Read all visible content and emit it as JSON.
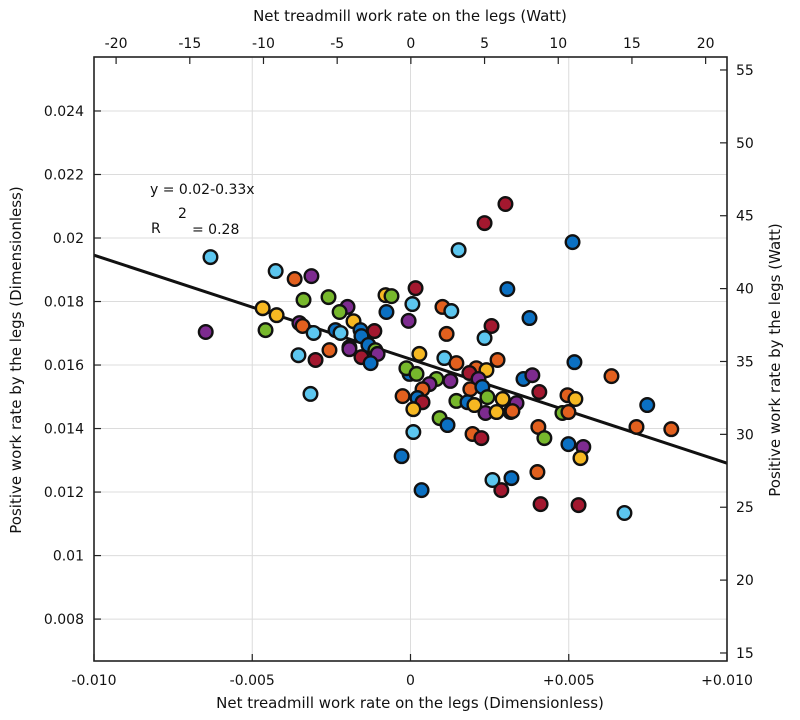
{
  "chart_data": {
    "type": "scatter",
    "title": "",
    "xlabel": "Net treadmill work rate on the legs (Dimensionless)",
    "ylabel": "Positive work rate by the legs (Dimensionless)",
    "x2label": "Net treadmill work rate on the legs (Watt)",
    "y2label": "Positive work rate by the legs (Watt)",
    "xlim": [
      -0.01,
      0.01
    ],
    "ylim": [
      0.00668,
      0.0257
    ],
    "x2lim": [
      -21.5,
      21.45
    ],
    "y2lim": [
      14.45,
      55.89
    ],
    "grid": true,
    "xticks": [
      {
        "value": -0.01,
        "label": "-0.010"
      },
      {
        "value": -0.005,
        "label": "-0.005"
      },
      {
        "value": 0,
        "label": "0"
      },
      {
        "value": 0.005,
        "label": "+0.005"
      },
      {
        "value": 0.01,
        "label": "+0.010"
      }
    ],
    "yticks": [
      {
        "value": 0.008,
        "label": "0.008"
      },
      {
        "value": 0.01,
        "label": "0.01"
      },
      {
        "value": 0.012,
        "label": "0.012"
      },
      {
        "value": 0.014,
        "label": "0.014"
      },
      {
        "value": 0.016,
        "label": "0.016"
      },
      {
        "value": 0.018,
        "label": "0.018"
      },
      {
        "value": 0.02,
        "label": "0.02"
      },
      {
        "value": 0.022,
        "label": "0.022"
      },
      {
        "value": 0.024,
        "label": "0.024"
      }
    ],
    "x2ticks": [
      {
        "value": -20,
        "label": "-20"
      },
      {
        "value": -15,
        "label": "-15"
      },
      {
        "value": -10,
        "label": "-10"
      },
      {
        "value": -5,
        "label": "-5"
      },
      {
        "value": 0,
        "label": "0"
      },
      {
        "value": 5,
        "label": "5"
      },
      {
        "value": 10,
        "label": "10"
      },
      {
        "value": 15,
        "label": "15"
      },
      {
        "value": 20,
        "label": "20"
      }
    ],
    "y2ticks": [
      {
        "value": 15,
        "label": "15"
      },
      {
        "value": 20,
        "label": "20"
      },
      {
        "value": 25,
        "label": "25"
      },
      {
        "value": 30,
        "label": "30"
      },
      {
        "value": 35,
        "label": "35"
      },
      {
        "value": 40,
        "label": "40"
      },
      {
        "value": 45,
        "label": "45"
      },
      {
        "value": 50,
        "label": "50"
      },
      {
        "value": 55,
        "label": "55"
      }
    ],
    "annotations": {
      "equation": "y = 0.02-0.33x",
      "r_label": "R",
      "r_superscript": "2",
      "r_value": "= 0.28"
    },
    "fit_line": {
      "x": [
        -0.01,
        0.01
      ],
      "y": [
        0.01946,
        0.01291
      ]
    },
    "colors": {
      "lightblue": "#5cc6ef",
      "purple": "#7d2b8f",
      "orange": "#e2601e",
      "green": "#77b82c",
      "yellow": "#f6b822",
      "blue": "#0b70c2",
      "darkred": "#a3182f"
    },
    "points": [
      {
        "c": "lightblue",
        "x": -0.00632,
        "y": 0.0194
      },
      {
        "c": "purple",
        "x": -0.00647,
        "y": 0.01704
      },
      {
        "c": "lightblue",
        "x": -0.00426,
        "y": 0.01896
      },
      {
        "c": "orange",
        "x": -0.00366,
        "y": 0.01871
      },
      {
        "c": "purple",
        "x": -0.00313,
        "y": 0.0188
      },
      {
        "c": "green",
        "x": -0.00338,
        "y": 0.01805
      },
      {
        "c": "green",
        "x": -0.00259,
        "y": 0.01814
      },
      {
        "c": "yellow",
        "x": -0.00467,
        "y": 0.01779
      },
      {
        "c": "yellow",
        "x": -0.00423,
        "y": 0.01757
      },
      {
        "c": "green",
        "x": -0.00458,
        "y": 0.0171
      },
      {
        "c": "purple",
        "x": -0.00351,
        "y": 0.01732
      },
      {
        "c": "orange",
        "x": -0.00341,
        "y": 0.01723
      },
      {
        "c": "lightblue",
        "x": -0.00306,
        "y": 0.01701
      },
      {
        "c": "lightblue",
        "x": -0.00354,
        "y": 0.01631
      },
      {
        "c": "darkred",
        "x": -0.003,
        "y": 0.01616
      },
      {
        "c": "orange",
        "x": -0.00256,
        "y": 0.01647
      },
      {
        "c": "purple",
        "x": -0.00199,
        "y": 0.01783
      },
      {
        "c": "green",
        "x": -0.00224,
        "y": 0.01767
      },
      {
        "c": "yellow",
        "x": -0.0018,
        "y": 0.01738
      },
      {
        "c": "blue",
        "x": -0.00237,
        "y": 0.0171
      },
      {
        "c": "lightblue",
        "x": -0.00221,
        "y": 0.01701
      },
      {
        "c": "blue",
        "x": -0.00158,
        "y": 0.0171
      },
      {
        "c": "blue",
        "x": -0.00155,
        "y": 0.01691
      },
      {
        "c": "darkred",
        "x": -0.00114,
        "y": 0.01707
      },
      {
        "c": "yellow",
        "x": -0.00193,
        "y": 0.01656
      },
      {
        "c": "purple",
        "x": -0.00193,
        "y": 0.0165
      },
      {
        "c": "blue",
        "x": -0.00133,
        "y": 0.01663
      },
      {
        "c": "green",
        "x": -0.00111,
        "y": 0.01647
      },
      {
        "c": "purple",
        "x": -0.00104,
        "y": 0.01635
      },
      {
        "c": "darkred",
        "x": -0.00155,
        "y": 0.01625
      },
      {
        "c": "blue",
        "x": -0.00126,
        "y": 0.01606
      },
      {
        "c": "yellow",
        "x": -0.00079,
        "y": 0.0182
      },
      {
        "c": "green",
        "x": -0.0006,
        "y": 0.01817
      },
      {
        "c": "blue",
        "x": -0.00076,
        "y": 0.01767
      },
      {
        "c": "darkred",
        "x": 0.00016,
        "y": 0.01842
      },
      {
        "c": "lightblue",
        "x": 6e-05,
        "y": 0.01792
      },
      {
        "c": "purple",
        "x": -6e-05,
        "y": 0.01739
      },
      {
        "c": "blue",
        "x": -3e-05,
        "y": 0.01572
      },
      {
        "c": "green",
        "x": -0.00013,
        "y": 0.0159
      },
      {
        "c": "green",
        "x": 0.00019,
        "y": 0.01572
      },
      {
        "c": "yellow",
        "x": 0.00028,
        "y": 0.01635
      },
      {
        "c": "darkred",
        "x": 0.003,
        "y": 0.02107
      },
      {
        "c": "darkred",
        "x": 0.00234,
        "y": 0.02047
      },
      {
        "c": "lightblue",
        "x": 0.00152,
        "y": 0.01962
      },
      {
        "c": "blue",
        "x": 0.00512,
        "y": 0.01987
      },
      {
        "c": "blue",
        "x": 0.00306,
        "y": 0.01839
      },
      {
        "c": "orange",
        "x": 0.00101,
        "y": 0.01783
      },
      {
        "c": "lightblue",
        "x": 0.00129,
        "y": 0.0177
      },
      {
        "c": "blue",
        "x": 0.00376,
        "y": 0.01748
      },
      {
        "c": "darkred",
        "x": 0.00256,
        "y": 0.01723
      },
      {
        "c": "lightblue",
        "x": 0.00234,
        "y": 0.01685
      },
      {
        "c": "orange",
        "x": 0.00114,
        "y": 0.01698
      },
      {
        "c": "lightblue",
        "x": 0.00107,
        "y": 0.01622
      },
      {
        "c": "orange",
        "x": 0.00145,
        "y": 0.01606
      },
      {
        "c": "orange",
        "x": 0.00275,
        "y": 0.01616
      },
      {
        "c": "blue",
        "x": 0.00518,
        "y": 0.01609
      },
      {
        "c": "orange",
        "x": 0.00635,
        "y": 0.01565
      },
      {
        "c": "orange",
        "x": 0.00208,
        "y": 0.0159
      },
      {
        "c": "yellow",
        "x": 0.0024,
        "y": 0.01584
      },
      {
        "c": "darkred",
        "x": 0.00186,
        "y": 0.01575
      },
      {
        "c": "purple",
        "x": 0.00215,
        "y": 0.01556
      },
      {
        "c": "blue",
        "x": 0.00357,
        "y": 0.01556
      },
      {
        "c": "purple",
        "x": 0.00385,
        "y": 0.01568
      },
      {
        "c": "purple",
        "x": 0.00126,
        "y": 0.0155
      },
      {
        "c": "green",
        "x": 0.00082,
        "y": 0.01556
      },
      {
        "c": "purple",
        "x": 0.0006,
        "y": 0.0154
      },
      {
        "c": "orange",
        "x": 0.00038,
        "y": 0.01524
      },
      {
        "c": "orange",
        "x": 0.00189,
        "y": 0.01524
      },
      {
        "c": "blue",
        "x": 0.00227,
        "y": 0.01531
      },
      {
        "c": "darkred",
        "x": 0.00407,
        "y": 0.01515
      },
      {
        "c": "orange",
        "x": 0.00496,
        "y": 0.01505
      },
      {
        "c": "yellow",
        "x": 0.00521,
        "y": 0.01493
      },
      {
        "c": "orange",
        "x": -0.00025,
        "y": 0.01502
      },
      {
        "c": "blue",
        "x": 0.00022,
        "y": 0.01496
      },
      {
        "c": "darkred",
        "x": 0.00038,
        "y": 0.01483
      },
      {
        "c": "yellow",
        "x": 9e-05,
        "y": 0.01461
      },
      {
        "c": "green",
        "x": 0.00092,
        "y": 0.01433
      },
      {
        "c": "blue",
        "x": 0.00117,
        "y": 0.01411
      },
      {
        "c": "lightblue",
        "x": 9e-05,
        "y": 0.01389
      },
      {
        "c": "blue",
        "x": -0.00028,
        "y": 0.01313
      },
      {
        "c": "blue",
        "x": 0.00035,
        "y": 0.01206
      },
      {
        "c": "green",
        "x": 0.00145,
        "y": 0.01487
      },
      {
        "c": "blue",
        "x": 0.0018,
        "y": 0.01483
      },
      {
        "c": "yellow",
        "x": 0.00202,
        "y": 0.01474
      },
      {
        "c": "green",
        "x": 0.00243,
        "y": 0.01499
      },
      {
        "c": "yellow",
        "x": 0.00291,
        "y": 0.01493
      },
      {
        "c": "purple",
        "x": 0.00335,
        "y": 0.0148
      },
      {
        "c": "purple",
        "x": 0.00237,
        "y": 0.01449
      },
      {
        "c": "yellow",
        "x": 0.00272,
        "y": 0.01452
      },
      {
        "c": "darkred",
        "x": 0.00316,
        "y": 0.01452
      },
      {
        "c": "orange",
        "x": 0.00322,
        "y": 0.01455
      },
      {
        "c": "orange",
        "x": 0.00196,
        "y": 0.01383
      },
      {
        "c": "darkred",
        "x": 0.00224,
        "y": 0.0137
      },
      {
        "c": "green",
        "x": 0.0048,
        "y": 0.01449
      },
      {
        "c": "orange",
        "x": 0.00499,
        "y": 0.01452
      },
      {
        "c": "orange",
        "x": 0.00404,
        "y": 0.01405
      },
      {
        "c": "green",
        "x": 0.00423,
        "y": 0.0137
      },
      {
        "c": "blue",
        "x": 0.00499,
        "y": 0.01351
      },
      {
        "c": "purple",
        "x": 0.00546,
        "y": 0.01342
      },
      {
        "c": "yellow",
        "x": 0.00537,
        "y": 0.01307
      },
      {
        "c": "orange",
        "x": 0.00401,
        "y": 0.01263
      },
      {
        "c": "lightblue",
        "x": 0.00259,
        "y": 0.01238
      },
      {
        "c": "blue",
        "x": 0.00319,
        "y": 0.01244
      },
      {
        "c": "darkred",
        "x": 0.00287,
        "y": 0.01206
      },
      {
        "c": "darkred",
        "x": 0.00411,
        "y": 0.01162
      },
      {
        "c": "darkred",
        "x": 0.00531,
        "y": 0.01159
      },
      {
        "c": "lightblue",
        "x": 0.00676,
        "y": 0.01134
      },
      {
        "c": "blue",
        "x": 0.00748,
        "y": 0.01474
      },
      {
        "c": "orange",
        "x": 0.00714,
        "y": 0.01405
      },
      {
        "c": "orange",
        "x": 0.00824,
        "y": 0.01398
      },
      {
        "c": "lightblue",
        "x": -0.00316,
        "y": 0.01509
      }
    ]
  }
}
